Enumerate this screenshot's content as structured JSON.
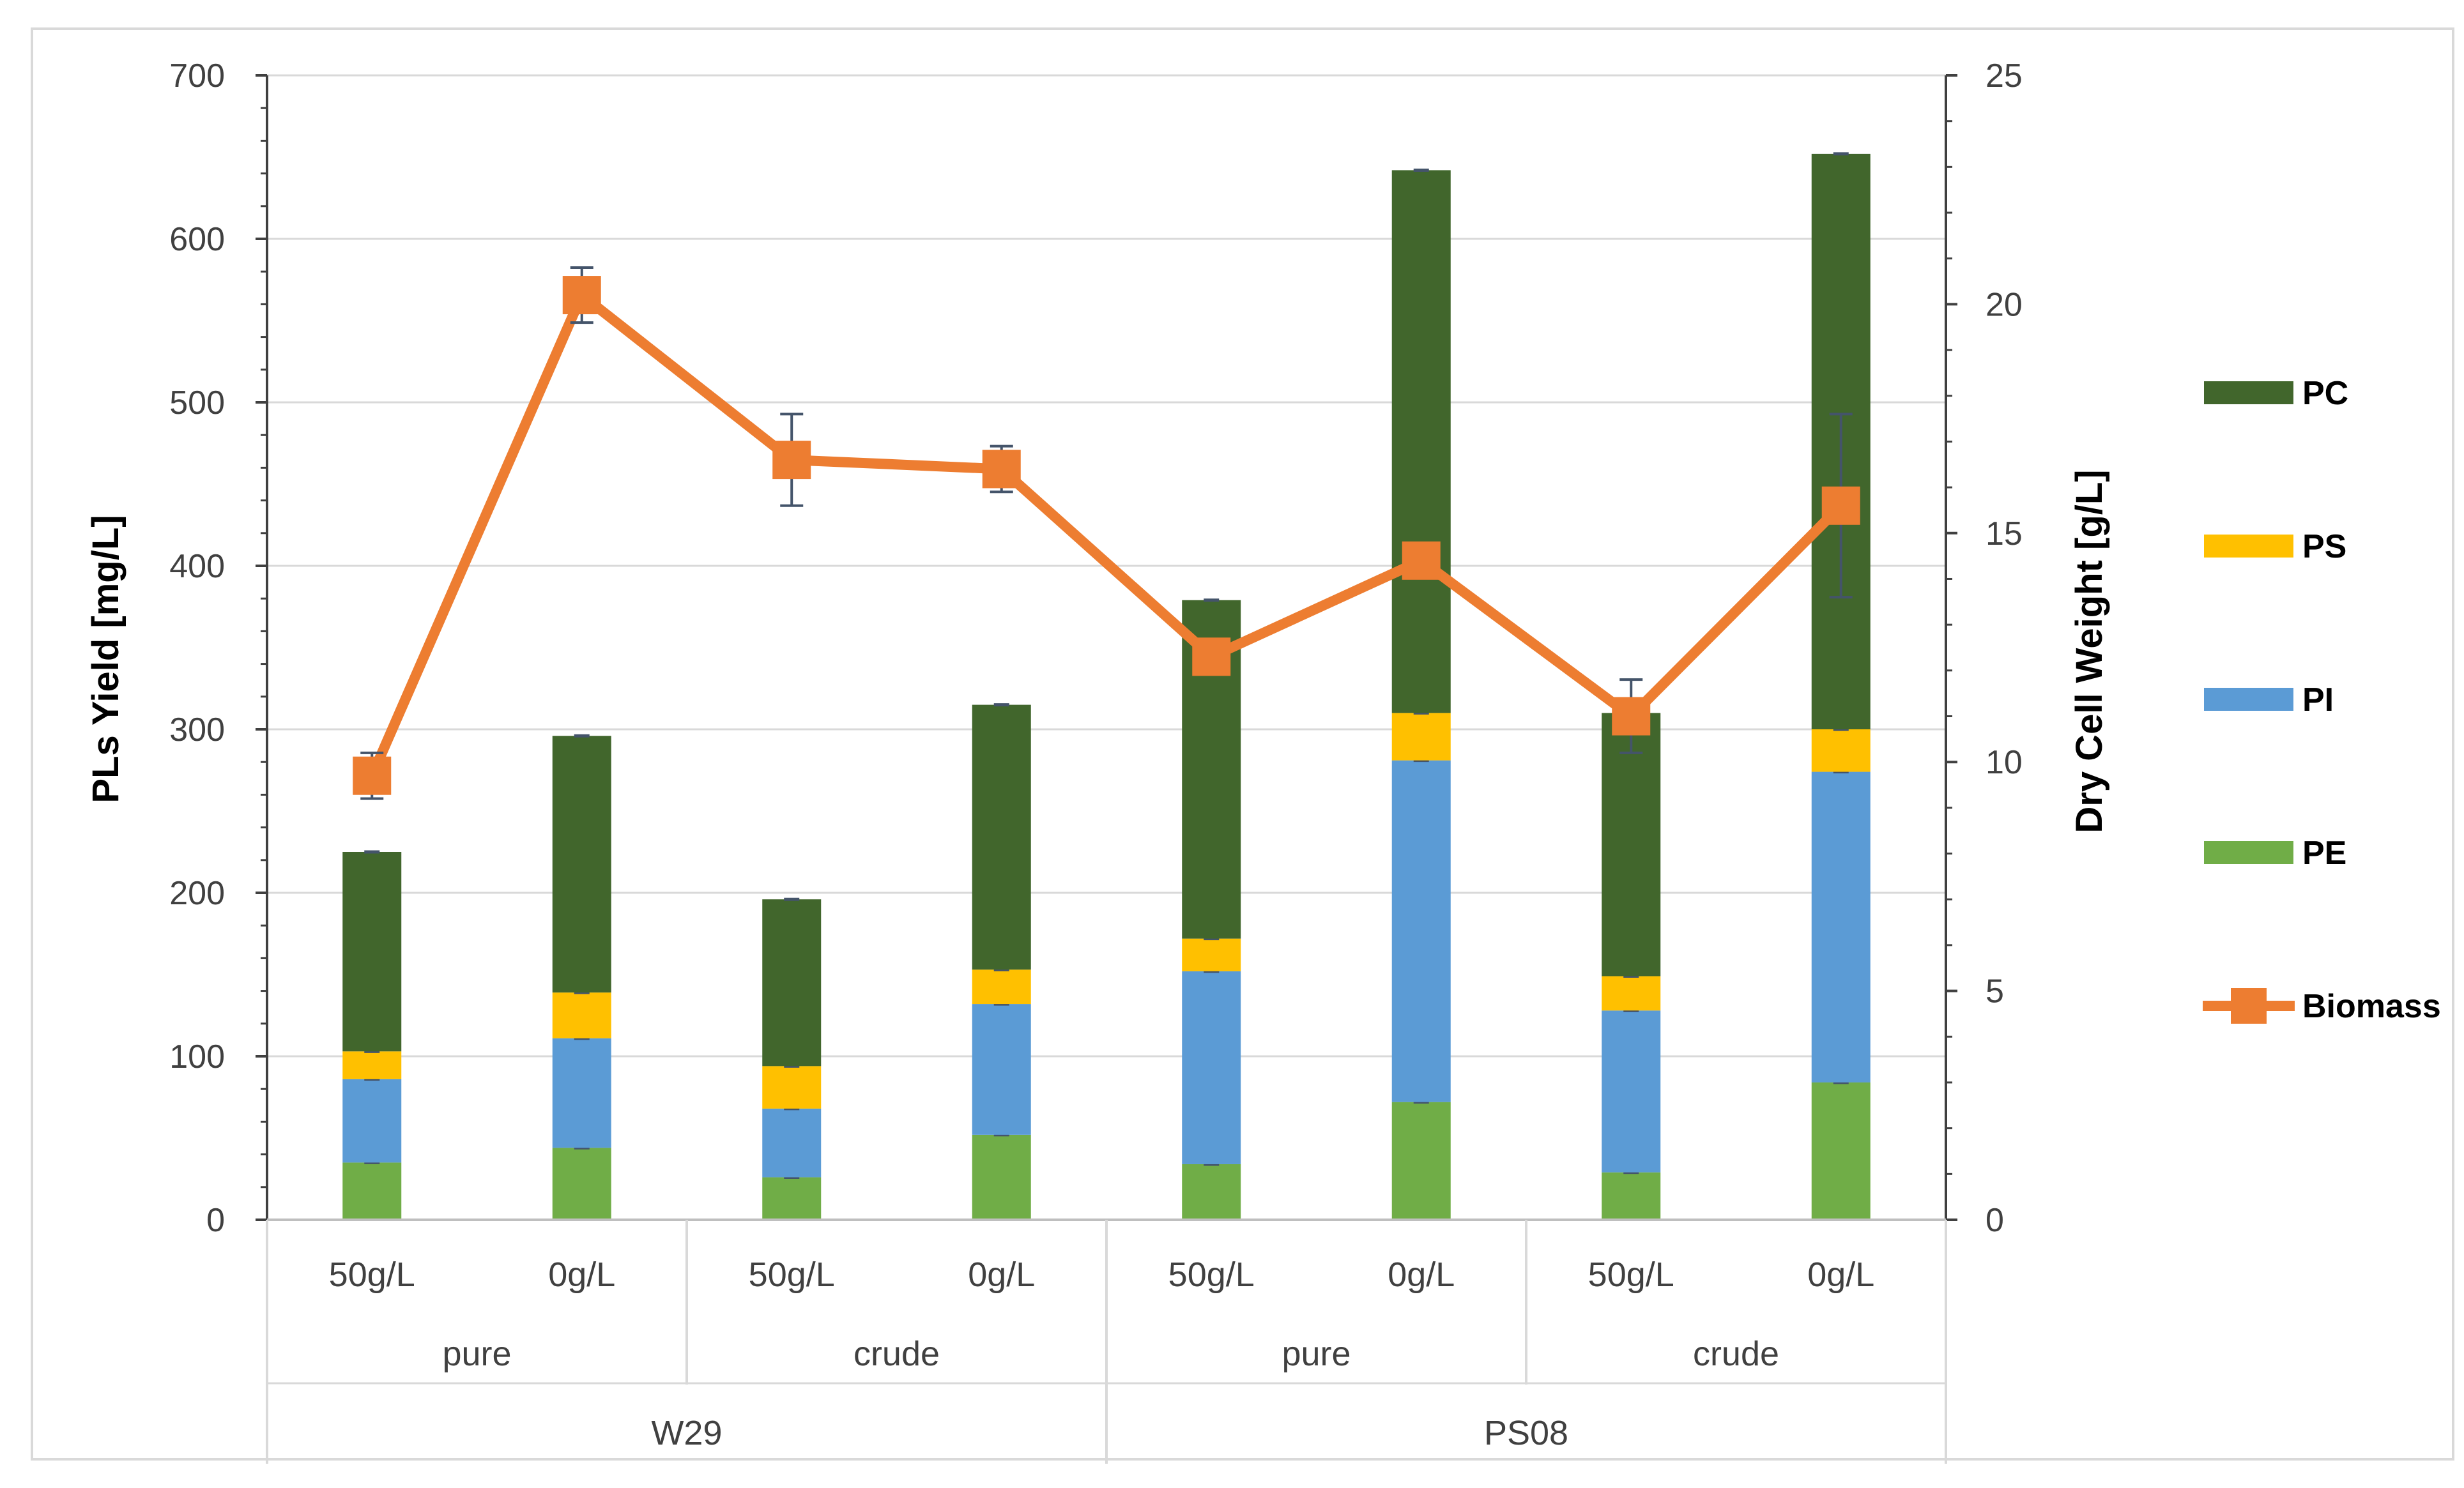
{
  "colors": {
    "PC": "#41662C",
    "PS": "#FFC000",
    "PI": "#5B9BD5",
    "PE": "#70AD47",
    "Biomass": "#ED7D31",
    "errorbar": "#44546A",
    "grid": "#D9D9D9",
    "axis": "#404040"
  },
  "chart_data": {
    "type": "stacked bar + line (dual y-axis)",
    "title": "",
    "y_left": {
      "label": "PLs Yield [mg/L]",
      "ticks": [
        "0",
        "100",
        "200",
        "300",
        "400",
        "500",
        "600",
        "700"
      ],
      "range": [
        0,
        700
      ]
    },
    "y_right": {
      "label": "Dry Cell Weight [g/L]",
      "ticks": [
        "0",
        "5",
        "10",
        "15",
        "20",
        "25"
      ],
      "range": [
        0,
        25
      ]
    },
    "categories": [
      {
        "level1": "50g/L",
        "level2": "pure",
        "level3": "W29"
      },
      {
        "level1": "0g/L",
        "level2": "pure",
        "level3": "W29"
      },
      {
        "level1": "50g/L",
        "level2": "crude",
        "level3": "W29"
      },
      {
        "level1": "0g/L",
        "level2": "crude",
        "level3": "W29"
      },
      {
        "level1": "50g/L",
        "level2": "pure",
        "level3": "PS08"
      },
      {
        "level1": "0g/L",
        "level2": "pure",
        "level3": "PS08"
      },
      {
        "level1": "50g/L",
        "level2": "crude",
        "level3": "PS08"
      },
      {
        "level1": "0g/L",
        "level2": "crude",
        "level3": "PS08"
      }
    ],
    "level2_groups": [
      "pure",
      "crude",
      "pure",
      "crude"
    ],
    "level3_groups": [
      "W29",
      "PS08"
    ],
    "stack_series": [
      {
        "name": "PE",
        "values": [
          35,
          44,
          26,
          52,
          34,
          72,
          29,
          84
        ]
      },
      {
        "name": "PI",
        "values": [
          51,
          67,
          42,
          80,
          118,
          209,
          99,
          190
        ]
      },
      {
        "name": "PS",
        "values": [
          17,
          28,
          26,
          21,
          20,
          29,
          21,
          26
        ]
      },
      {
        "name": "PC",
        "values": [
          122,
          157,
          102,
          162,
          207,
          332,
          161,
          352
        ]
      }
    ],
    "stack_totals": [
      225,
      296,
      196,
      315,
      379,
      642,
      310,
      652
    ],
    "line_series": {
      "name": "Biomass",
      "axis": "right",
      "values": [
        9.7,
        20.2,
        16.6,
        16.4,
        12.3,
        14.4,
        11.0,
        15.6
      ],
      "errors": [
        0.5,
        0.6,
        1.0,
        0.5,
        0.1,
        0.1,
        0.8,
        2.0
      ]
    },
    "legend": {
      "position": "right",
      "entries": [
        {
          "label": "PC",
          "kind": "bar"
        },
        {
          "label": "PS",
          "kind": "bar"
        },
        {
          "label": "PI",
          "kind": "bar"
        },
        {
          "label": "PE",
          "kind": "bar"
        },
        {
          "label": "Biomass",
          "kind": "line"
        }
      ]
    },
    "grid": "horizontal"
  }
}
